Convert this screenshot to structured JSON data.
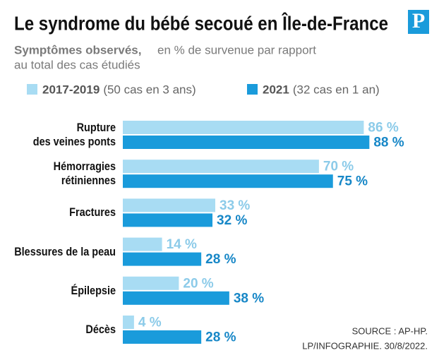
{
  "chart_data": {
    "type": "bar",
    "orientation": "horizontal",
    "title": "Le syndrome du bébé secoué en Île-de-France",
    "logo": "P",
    "subtitle_lead": "Symptômes observés,",
    "subtitle": [
      "en % de survenue par rapport",
      "au total des cas étudiés"
    ],
    "categories": [
      "Rupture\ndes veines ponts",
      "Hémorragies\nrétiniennes",
      "Fractures",
      "Blessures de la peau",
      "Épilepsie",
      "Décès"
    ],
    "series": [
      {
        "name": "2017-2019",
        "note": "(50 cas en 3 ans)",
        "color": "#a8dcf3",
        "label_color": "#8ccbe9",
        "values": [
          86,
          70,
          33,
          14,
          20,
          4
        ],
        "value_labels": [
          "86 %",
          "70 %",
          "33 %",
          "14 %",
          "20 %",
          "4 %"
        ]
      },
      {
        "name": "2021",
        "note": "(32 cas en 1 an)",
        "color": "#1a9bdb",
        "label_color": "#1787c7",
        "values": [
          88,
          75,
          32,
          28,
          38,
          28
        ],
        "value_labels": [
          "88 %",
          "75 %",
          "32 %",
          "28 %",
          "38 %",
          "28 %"
        ]
      }
    ],
    "source": [
      "SOURCE : AP-HP.",
      "LP/INFOGRAPHIE.  30/8/2022."
    ]
  }
}
